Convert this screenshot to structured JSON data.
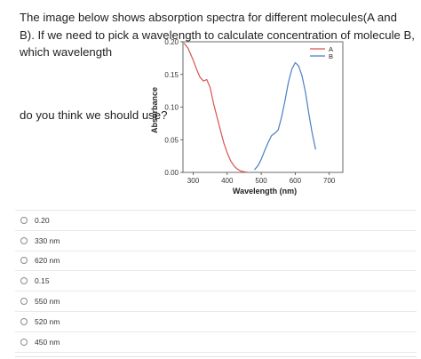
{
  "question": {
    "text": "The image below shows absorption spectra for different molecules(A and B). If we need to pick a wavelength to calculate concentration of molecule B, which wavelength",
    "text_after": "do you think we should use?"
  },
  "chart_data": {
    "type": "line",
    "xlabel": "Wavelength (nm)",
    "ylabel": "Absorbance",
    "xlim": [
      270,
      740
    ],
    "ylim": [
      0,
      0.2
    ],
    "xticks": [
      "300",
      "400",
      "500",
      "600",
      "700"
    ],
    "yticks": [
      "0.00",
      "0.05",
      "0.10",
      "0.15",
      "0.20"
    ],
    "legend_position": "top-right",
    "series": [
      {
        "name": "A",
        "color": "#d9534f",
        "x": [
          273,
          285,
          300,
          310,
          320,
          330,
          340,
          350,
          360,
          370,
          380,
          390,
          400,
          410,
          420,
          430,
          440,
          450,
          460
        ],
        "y": [
          0.198,
          0.19,
          0.172,
          0.158,
          0.146,
          0.14,
          0.142,
          0.13,
          0.105,
          0.085,
          0.065,
          0.045,
          0.03,
          0.018,
          0.01,
          0.005,
          0.002,
          0.001,
          0.0
        ]
      },
      {
        "name": "B",
        "color": "#4a7fc1",
        "x": [
          480,
          490,
          500,
          510,
          520,
          530,
          540,
          550,
          560,
          570,
          580,
          590,
          600,
          610,
          620,
          630,
          640,
          650,
          660
        ],
        "y": [
          0.004,
          0.01,
          0.02,
          0.033,
          0.045,
          0.056,
          0.06,
          0.065,
          0.085,
          0.11,
          0.138,
          0.158,
          0.168,
          0.163,
          0.148,
          0.123,
          0.09,
          0.06,
          0.035
        ]
      }
    ]
  },
  "options": [
    {
      "label": "0.20"
    },
    {
      "label": "330 nm"
    },
    {
      "label": "620 nm"
    },
    {
      "label": "0.15"
    },
    {
      "label": "550 nm"
    },
    {
      "label": "520 nm"
    },
    {
      "label": "450 nm"
    }
  ]
}
